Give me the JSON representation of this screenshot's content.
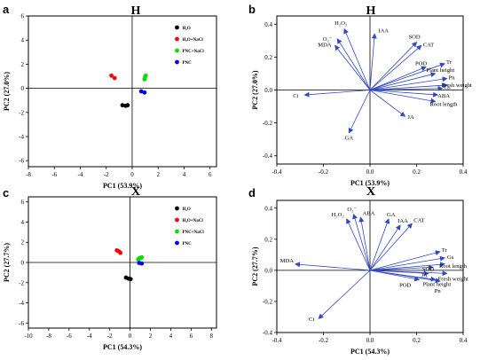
{
  "chart_data": [
    {
      "type": "scatter",
      "panel": "a",
      "title": "H",
      "xlabel": "PC1 (53.9%)",
      "ylabel": "PC2 (27.0%)",
      "xlim": [
        -8,
        6.5
      ],
      "ylim": [
        -6.5,
        6
      ],
      "xticks": [
        -8,
        -6,
        -4,
        -2,
        0,
        2,
        4,
        6
      ],
      "yticks": [
        -6,
        -4,
        -2,
        0,
        2,
        4,
        6
      ],
      "grid": false,
      "legend": "top-right",
      "series": [
        {
          "name": "H₂O",
          "color": "#000000",
          "points": [
            [
              -0.75,
              -1.4
            ],
            [
              -0.5,
              -1.45
            ],
            [
              -0.35,
              -1.4
            ]
          ]
        },
        {
          "name": "H₂O+NaCl",
          "color": "#ff0000",
          "points": [
            [
              -1.6,
              1.05
            ],
            [
              -1.35,
              0.85
            ]
          ]
        },
        {
          "name": "PNC+NaCl",
          "color": "#00dd00",
          "points": [
            [
              0.95,
              0.75
            ],
            [
              1.0,
              0.95
            ],
            [
              1.05,
              1.05
            ]
          ]
        },
        {
          "name": "PNC",
          "color": "#0000ee",
          "points": [
            [
              0.7,
              -0.25
            ],
            [
              0.95,
              -0.35
            ]
          ]
        }
      ]
    },
    {
      "type": "biplot",
      "panel": "b",
      "title": "H",
      "xlabel": "PC1 (53.9%)",
      "ylabel": "PC2 (27.0%)",
      "xlim": [
        -0.4,
        0.4
      ],
      "ylim": [
        -0.45,
        0.45
      ],
      "xticks": [
        -0.4,
        -0.2,
        0.0,
        0.2,
        0.4
      ],
      "yticks": [
        -0.4,
        -0.2,
        0.0,
        0.2,
        0.4
      ],
      "xtick_labels": [
        "-0.4",
        "-0.2",
        "0.0",
        "0.2",
        "0.4"
      ],
      "ytick_labels": [
        "-0.4",
        "-0.2",
        "0.0",
        "0.2",
        "0.4"
      ],
      "vector_color": "#2f47c8",
      "vectors": [
        {
          "label": "H₂O₂",
          "x": -0.11,
          "y": 0.37
        },
        {
          "label": "O₂⁻",
          "x": -0.14,
          "y": 0.31
        },
        {
          "label": "MDA",
          "x": -0.15,
          "y": 0.27
        },
        {
          "label": "IAA",
          "x": 0.02,
          "y": 0.34
        },
        {
          "label": "SOD",
          "x": 0.2,
          "y": 0.29
        },
        {
          "label": "CAT",
          "x": 0.22,
          "y": 0.27
        },
        {
          "label": "POD",
          "x": 0.24,
          "y": 0.14
        },
        {
          "label": "Tr",
          "x": 0.32,
          "y": 0.16
        },
        {
          "label": "Plant height",
          "x": 0.28,
          "y": 0.1
        },
        {
          "label": "Pn",
          "x": 0.33,
          "y": 0.07
        },
        {
          "label": "Fresh weight",
          "x": 0.33,
          "y": 0.03
        },
        {
          "label": "Gs",
          "x": 0.31,
          "y": 0.01
        },
        {
          "label": "ABA",
          "x": 0.29,
          "y": -0.03
        },
        {
          "label": "Root length",
          "x": 0.28,
          "y": -0.07
        },
        {
          "label": "JA",
          "x": 0.15,
          "y": -0.16
        },
        {
          "label": "GA",
          "x": -0.09,
          "y": -0.26
        },
        {
          "label": "Ci",
          "x": -0.28,
          "y": -0.03
        }
      ]
    },
    {
      "type": "scatter",
      "panel": "c",
      "title": "X",
      "xlabel": "PC1 (54.3%)",
      "ylabel": "PC2 (27.7%)",
      "xlim": [
        -10,
        8.5
      ],
      "ylim": [
        -6.5,
        6.5
      ],
      "xticks": [
        -10,
        -8,
        -6,
        -4,
        -2,
        0,
        2,
        4,
        6,
        8
      ],
      "yticks": [
        -6,
        -4,
        -2,
        0,
        2,
        4,
        6
      ],
      "grid": false,
      "legend": "top-right",
      "series": [
        {
          "name": "H₂O",
          "color": "#000000",
          "points": [
            [
              -0.4,
              -1.5
            ],
            [
              -0.15,
              -1.6
            ],
            [
              0.05,
              -1.65
            ]
          ]
        },
        {
          "name": "H₂O+NaCl",
          "color": "#ff0000",
          "points": [
            [
              -1.3,
              1.2
            ],
            [
              -1.1,
              1.1
            ],
            [
              -0.95,
              0.95
            ]
          ]
        },
        {
          "name": "PNC+NaCl",
          "color": "#00dd00",
          "points": [
            [
              0.8,
              0.3
            ],
            [
              0.95,
              0.45
            ],
            [
              1.15,
              0.5
            ]
          ]
        },
        {
          "name": "PNC",
          "color": "#0000ee",
          "points": [
            [
              0.9,
              -0.05
            ],
            [
              1.15,
              -0.1
            ]
          ]
        }
      ]
    },
    {
      "type": "biplot",
      "panel": "d",
      "title": "X",
      "xlabel": "PC1 (54.3%)",
      "ylabel": "PC2 (27.7%)",
      "xlim": [
        -0.4,
        0.4
      ],
      "ylim": [
        -0.4,
        0.45
      ],
      "xticks": [
        -0.4,
        -0.2,
        0.0,
        0.2,
        0.4
      ],
      "yticks": [
        -0.4,
        -0.2,
        0.0,
        0.2,
        0.4
      ],
      "xtick_labels": [
        "-0.4",
        "-0.2",
        "0.0",
        "0.2",
        "0.4"
      ],
      "ytick_labels": [
        "-0.4",
        "-0.2",
        "0.0",
        "0.2",
        "0.4"
      ],
      "vector_color": "#2f47c8",
      "vectors": [
        {
          "label": "H₂O₂",
          "x": -0.1,
          "y": 0.33
        },
        {
          "label": "O₂⁻",
          "x": -0.07,
          "y": 0.36
        },
        {
          "label": "ABA",
          "x": -0.04,
          "y": 0.34
        },
        {
          "label": "GA",
          "x": 0.08,
          "y": 0.33
        },
        {
          "label": "IAA",
          "x": 0.13,
          "y": 0.29
        },
        {
          "label": "CAT",
          "x": 0.18,
          "y": 0.3
        },
        {
          "label": "Tr",
          "x": 0.3,
          "y": 0.12
        },
        {
          "label": "Gs",
          "x": 0.32,
          "y": 0.08
        },
        {
          "label": "Root length",
          "x": 0.32,
          "y": 0.04
        },
        {
          "label": "SOD",
          "x": 0.27,
          "y": 0.02
        },
        {
          "label": "JA",
          "x": 0.25,
          "y": -0.02
        },
        {
          "label": "Fresh weight",
          "x": 0.33,
          "y": -0.02
        },
        {
          "label": "Plant height",
          "x": 0.28,
          "y": -0.06
        },
        {
          "label": "POD",
          "x": 0.21,
          "y": -0.06
        },
        {
          "label": "Pn",
          "x": 0.3,
          "y": -0.07
        },
        {
          "label": "MDA",
          "x": -0.32,
          "y": 0.04
        },
        {
          "label": "Ci",
          "x": -0.22,
          "y": -0.31
        }
      ]
    }
  ]
}
